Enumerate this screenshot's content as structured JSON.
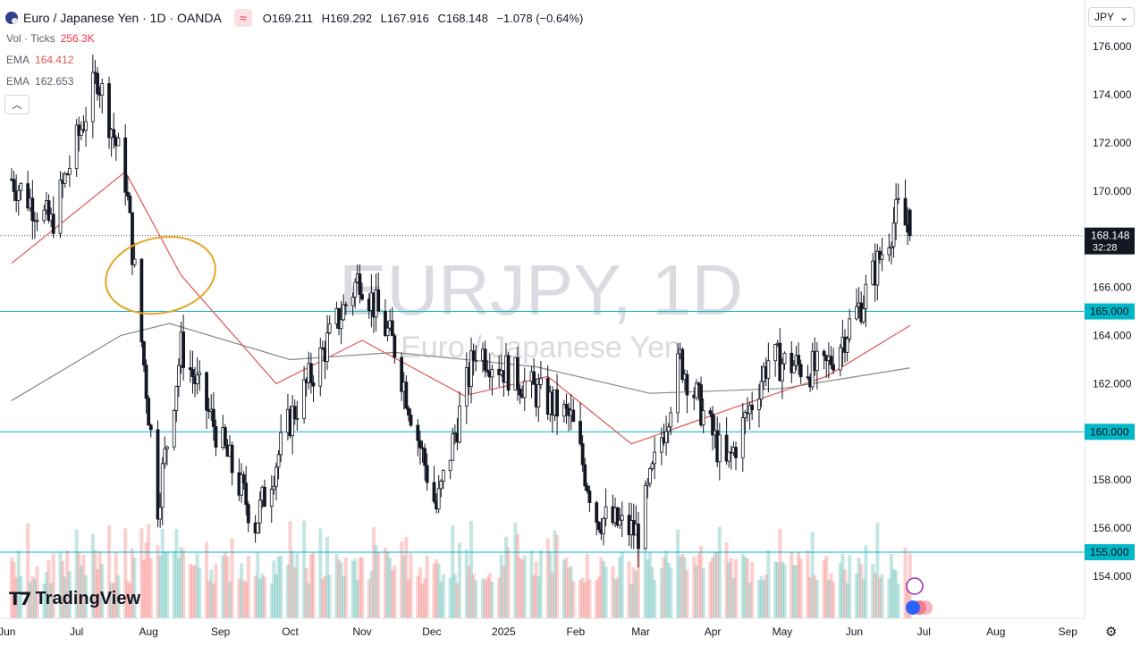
{
  "header": {
    "symbol": "Euro / Japanese Yen · 1D · OANDA",
    "open_label": "O",
    "open": "169.211",
    "high_label": "H",
    "high": "169.292",
    "low_label": "L",
    "low": "167.916",
    "close_label": "C",
    "close": "168.148",
    "change": "−1.078 (−0.64%)"
  },
  "indicators": {
    "volume": {
      "label": "Vol · Ticks",
      "value": "256.3K",
      "color": "#f23645"
    },
    "ema_fast": {
      "label": "EMA",
      "value": "164.412",
      "color": "#e05555"
    },
    "ema_slow": {
      "label": "EMA",
      "value": "162.653",
      "color": "#888888"
    }
  },
  "currency_selector": "JPY",
  "watermark": {
    "title": "EURJPY, 1D",
    "subtitle": "Euro / Japanese Yen"
  },
  "brand": "TradingView",
  "price_badges": {
    "last_price": "168.148",
    "countdown": "32:28"
  },
  "colors": {
    "up": "#26a69a",
    "down": "#ef5350",
    "level_line": "#00b7c7",
    "ema_fast": "#e05555",
    "ema_slow": "#888888",
    "annotation": "#e3a628"
  },
  "chart_data": {
    "type": "candlestick",
    "symbol": "EURJPY",
    "interval": "1D",
    "y_axis_ticks": [
      154.0,
      156.0,
      158.0,
      160.0,
      162.0,
      164.0,
      166.0,
      168.0,
      170.0,
      172.0,
      174.0,
      176.0
    ],
    "ylim": [
      153.0,
      177.0
    ],
    "x_axis_ticks": [
      "Jun",
      "Jul",
      "Aug",
      "Sep",
      "Oct",
      "Nov",
      "Dec",
      "2025",
      "Feb",
      "Mar",
      "Apr",
      "May",
      "Jun",
      "Jul",
      "Aug",
      "Sep"
    ],
    "horizontal_levels": [
      165.0,
      160.0,
      155.0
    ],
    "approx_close_path": [
      {
        "date": "2024-06-03",
        "close": 170.5
      },
      {
        "date": "2024-06-20",
        "close": 168.6
      },
      {
        "date": "2024-07-10",
        "close": 174.8
      },
      {
        "date": "2024-07-22",
        "close": 170.5
      },
      {
        "date": "2024-08-05",
        "close": 157.0
      },
      {
        "date": "2024-08-15",
        "close": 163.5
      },
      {
        "date": "2024-09-16",
        "close": 156.2
      },
      {
        "date": "2024-10-01",
        "close": 160.5
      },
      {
        "date": "2024-10-31",
        "close": 166.5
      },
      {
        "date": "2024-11-15",
        "close": 163.5
      },
      {
        "date": "2024-12-03",
        "close": 156.8
      },
      {
        "date": "2024-12-20",
        "close": 163.5
      },
      {
        "date": "2025-01-10",
        "close": 162.0
      },
      {
        "date": "2025-01-30",
        "close": 160.5
      },
      {
        "date": "2025-02-10",
        "close": 156.5
      },
      {
        "date": "2025-02-28",
        "close": 155.8
      },
      {
        "date": "2025-03-18",
        "close": 163.0
      },
      {
        "date": "2025-04-07",
        "close": 158.5
      },
      {
        "date": "2025-04-25",
        "close": 163.0
      },
      {
        "date": "2025-05-19",
        "close": 162.5
      },
      {
        "date": "2025-06-05",
        "close": 165.5
      },
      {
        "date": "2025-06-20",
        "close": 169.2
      },
      {
        "date": "2025-06-25",
        "close": 168.148
      }
    ],
    "ema_fast_path": [
      {
        "date": "2024-06-03",
        "value": 167.0
      },
      {
        "date": "2024-07-22",
        "value": 170.8
      },
      {
        "date": "2024-08-15",
        "value": 166.5
      },
      {
        "date": "2024-09-25",
        "value": 162.0
      },
      {
        "date": "2024-11-01",
        "value": 163.8
      },
      {
        "date": "2024-12-15",
        "value": 161.5
      },
      {
        "date": "2025-01-20",
        "value": 162.3
      },
      {
        "date": "2025-02-25",
        "value": 159.5
      },
      {
        "date": "2025-04-10",
        "value": 161.0
      },
      {
        "date": "2025-05-20",
        "value": 162.3
      },
      {
        "date": "2025-06-25",
        "value": 164.412
      }
    ],
    "ema_slow_path": [
      {
        "date": "2024-06-03",
        "value": 161.3
      },
      {
        "date": "2024-07-20",
        "value": 164.0
      },
      {
        "date": "2024-08-10",
        "value": 164.5
      },
      {
        "date": "2024-10-01",
        "value": 163.0
      },
      {
        "date": "2024-11-15",
        "value": 163.3
      },
      {
        "date": "2025-01-15",
        "value": 162.7
      },
      {
        "date": "2025-03-05",
        "value": 161.6
      },
      {
        "date": "2025-05-01",
        "value": 161.8
      },
      {
        "date": "2025-06-25",
        "value": 162.653
      }
    ],
    "annotation": {
      "shape": "ellipse",
      "date_center": "2024-08-05",
      "price_center": 166.5
    }
  }
}
